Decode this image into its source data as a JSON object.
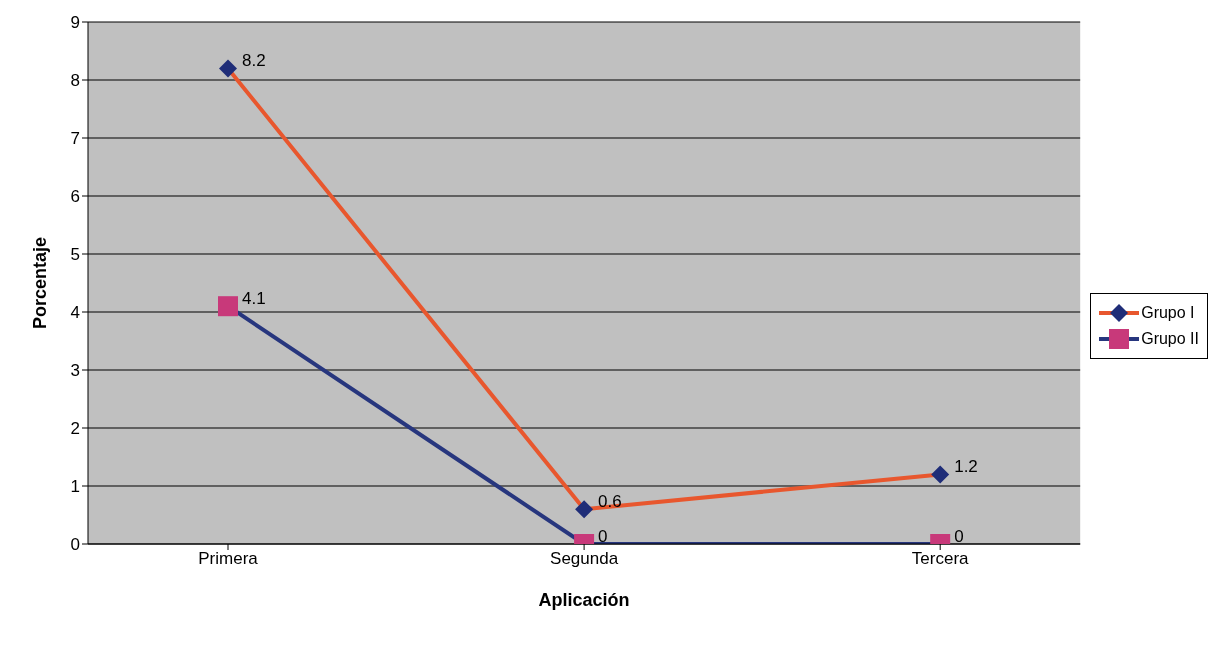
{
  "chart_data": {
    "type": "line",
    "xlabel": "Aplicación",
    "ylabel": "Porcentaje",
    "categories": [
      "Primera",
      "Segunda",
      "Tercera"
    ],
    "series": [
      {
        "name": "Grupo I",
        "color": "#e8572e",
        "marker": "diamond",
        "colors": [
          "#1f2d78",
          "#1f2d78",
          "#1f2d78"
        ],
        "values": [
          8.2,
          0.6,
          1.2
        ]
      },
      {
        "name": "Grupo II",
        "color": "#27367e",
        "marker": "square",
        "colors": [
          "#c8397a",
          "#c8397a",
          "#c8397a"
        ],
        "values": [
          4.1,
          0,
          0
        ]
      }
    ],
    "ylim": [
      0,
      9
    ],
    "yticks": [
      0,
      1,
      2,
      3,
      4,
      5,
      6,
      7,
      8,
      9
    ],
    "grid": "y",
    "legend": "right",
    "data_labels": true
  }
}
